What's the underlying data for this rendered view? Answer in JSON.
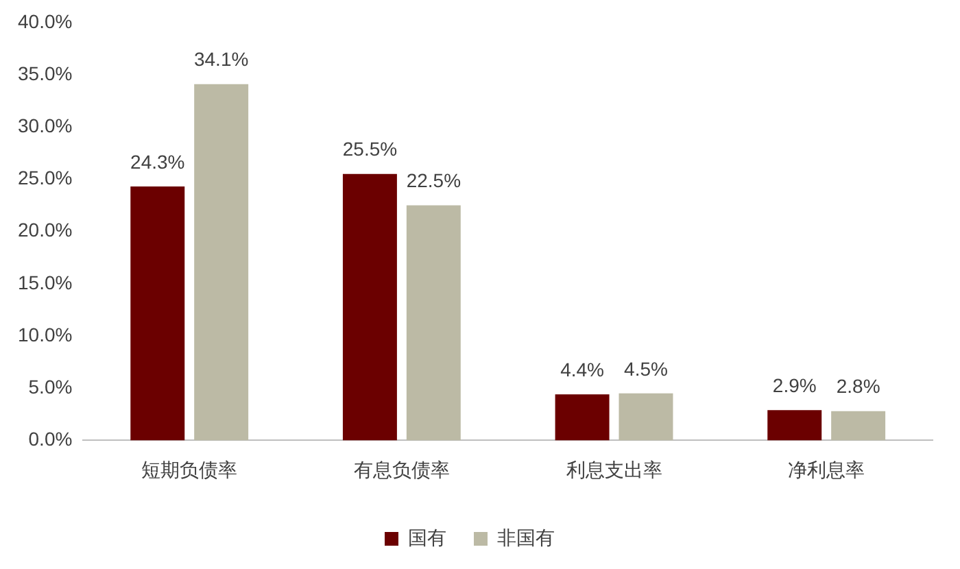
{
  "chart_data": {
    "type": "bar",
    "categories": [
      "短期负债率",
      "有息负债率",
      "利息支出率",
      "净利息率"
    ],
    "series": [
      {
        "name": "国有",
        "color": "#6b0000",
        "values": [
          24.3,
          25.5,
          4.4,
          2.9
        ],
        "value_labels": [
          "24.3%",
          "25.5%",
          "4.4%",
          "2.9%"
        ]
      },
      {
        "name": "非国有",
        "color": "#bcbaa5",
        "values": [
          34.1,
          22.5,
          4.5,
          2.8
        ],
        "value_labels": [
          "34.1%",
          "22.5%",
          "4.5%",
          "2.8%"
        ]
      }
    ],
    "ylim": [
      0,
      40
    ],
    "yticks": [
      {
        "value": 0,
        "label": "0.0%"
      },
      {
        "value": 5,
        "label": "5.0%"
      },
      {
        "value": 10,
        "label": "10.0%"
      },
      {
        "value": 15,
        "label": "15.0%"
      },
      {
        "value": 20,
        "label": "20.0%"
      },
      {
        "value": 25,
        "label": "25.0%"
      },
      {
        "value": 30,
        "label": "30.0%"
      },
      {
        "value": 35,
        "label": "35.0%"
      },
      {
        "value": 40,
        "label": "40.0%"
      }
    ],
    "grid": false,
    "legend": "bottom"
  }
}
